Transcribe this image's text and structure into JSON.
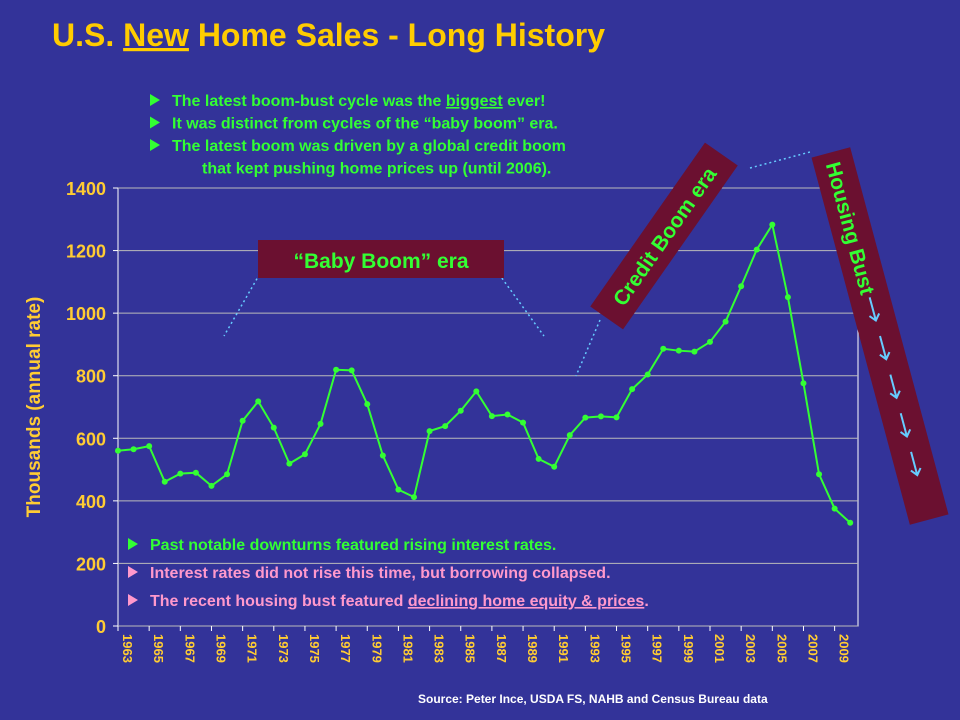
{
  "chart_data": {
    "type": "line",
    "title": [
      "U.S. ",
      "New",
      " Home Sales - Long History"
    ],
    "title_underline": 1,
    "ylabel": "Thousands (annual rate)",
    "source": "Source:  Peter Ince,  USDA FS, NAHB and Census Bureau data",
    "x": [
      1963,
      1964,
      1965,
      1966,
      1967,
      1968,
      1969,
      1970,
      1971,
      1972,
      1973,
      1974,
      1975,
      1976,
      1977,
      1978,
      1979,
      1980,
      1981,
      1982,
      1983,
      1984,
      1985,
      1986,
      1987,
      1988,
      1989,
      1990,
      1991,
      1992,
      1993,
      1994,
      1995,
      1996,
      1997,
      1998,
      1999,
      2000,
      2001,
      2002,
      2003,
      2004,
      2005,
      2006,
      2007,
      2008,
      2009,
      2010
    ],
    "series": [
      {
        "color": "#33ff33",
        "values": [
          560,
          565,
          575,
          461,
          487,
          490,
          448,
          485,
          656,
          718,
          634,
          519,
          549,
          646,
          819,
          817,
          709,
          545,
          436,
          412,
          623,
          639,
          688,
          750,
          671,
          676,
          650,
          534,
          509,
          610,
          666,
          670,
          667,
          757,
          804,
          886,
          880,
          877,
          908,
          973,
          1086,
          1203,
          1283,
          1051,
          776,
          485,
          375,
          330
        ]
      }
    ],
    "xlim": [
      1963,
      2010.5
    ],
    "ylim": [
      0,
      1400
    ],
    "xticks": [
      1963,
      1965,
      1967,
      1969,
      1971,
      1973,
      1975,
      1977,
      1979,
      1981,
      1983,
      1985,
      1987,
      1989,
      1991,
      1993,
      1995,
      1997,
      1999,
      2001,
      2003,
      2005,
      2007,
      2009
    ],
    "yticks": [
      0,
      200,
      400,
      600,
      800,
      1000,
      1200,
      1400
    ],
    "grid": true,
    "notes_top": [
      {
        "text": [
          "The latest boom-bust cycle was the ",
          "biggest",
          " ever!"
        ],
        "underline": 1,
        "color": "#33ff33"
      },
      {
        "text": [
          "It was distinct from cycles of the “baby boom” era."
        ],
        "color": "#33ff33"
      },
      {
        "text": [
          "The latest boom was driven by a global credit boom"
        ],
        "color": "#33ff33"
      },
      {
        "text": [
          "that kept pushing home prices up (until 2006)."
        ],
        "color": "#33ff33",
        "indent": true
      }
    ],
    "notes_bottom": [
      {
        "text": [
          "Past notable downturns featured rising interest rates."
        ],
        "color": "#33ff33"
      },
      {
        "text": [
          "Interest rates did not rise this time, but borrowing collapsed."
        ],
        "color": "#ff99cc"
      },
      {
        "text": [
          "The recent housing bust featured ",
          "declining home equity & prices",
          "."
        ],
        "underline": 1,
        "color": "#ff99cc"
      }
    ],
    "labels": {
      "baby_boom": "“Baby Boom” era",
      "credit_boom": "Credit Boom era",
      "housing_bust": "Housing Bust"
    }
  }
}
